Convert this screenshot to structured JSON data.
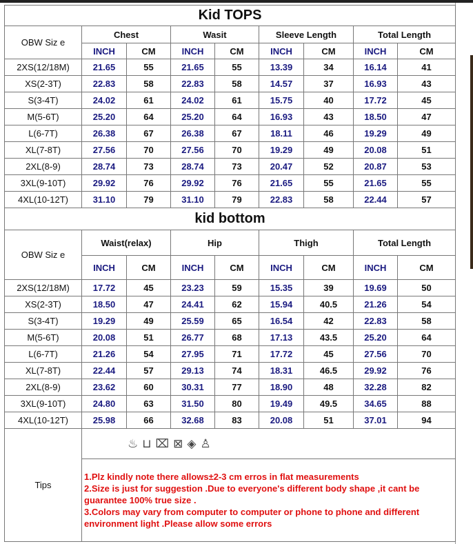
{
  "tops": {
    "title": "Kid TOPS",
    "size_label": "OBW  Siz e",
    "groups": [
      "Chest",
      "Wasit",
      "Sleeve Length",
      "Total Length"
    ],
    "units": [
      "INCH",
      "CM"
    ],
    "rows": [
      [
        "2XS(12/18M)",
        "21.65",
        "55",
        "21.65",
        "55",
        "13.39",
        "34",
        "16.14",
        "41"
      ],
      [
        "XS(2-3T)",
        "22.83",
        "58",
        "22.83",
        "58",
        "14.57",
        "37",
        "16.93",
        "43"
      ],
      [
        "S(3-4T)",
        "24.02",
        "61",
        "24.02",
        "61",
        "15.75",
        "40",
        "17.72",
        "45"
      ],
      [
        "M(5-6T)",
        "25.20",
        "64",
        "25.20",
        "64",
        "16.93",
        "43",
        "18.50",
        "47"
      ],
      [
        "L(6-7T)",
        "26.38",
        "67",
        "26.38",
        "67",
        "18.11",
        "46",
        "19.29",
        "49"
      ],
      [
        "XL(7-8T)",
        "27.56",
        "70",
        "27.56",
        "70",
        "19.29",
        "49",
        "20.08",
        "51"
      ],
      [
        "2XL(8-9)",
        "28.74",
        "73",
        "28.74",
        "73",
        "20.47",
        "52",
        "20.87",
        "53"
      ],
      [
        "3XL(9-10T)",
        "29.92",
        "76",
        "29.92",
        "76",
        "21.65",
        "55",
        "21.65",
        "55"
      ],
      [
        "4XL(10-12T)",
        "31.10",
        "79",
        "31.10",
        "79",
        "22.83",
        "58",
        "22.44",
        "57"
      ]
    ]
  },
  "bottom": {
    "title": "kid bottom",
    "size_label": "OBW  Siz e",
    "groups": [
      "Waist(relax)",
      "Hip",
      "Thigh",
      "Total Length"
    ],
    "units": [
      "INCH",
      "CM"
    ],
    "rows": [
      [
        "2XS(12/18M)",
        "17.72",
        "45",
        "23.23",
        "59",
        "15.35",
        "39",
        "19.69",
        "50"
      ],
      [
        "XS(2-3T)",
        "18.50",
        "47",
        "24.41",
        "62",
        "15.94",
        "40.5",
        "21.26",
        "54"
      ],
      [
        "S(3-4T)",
        "19.29",
        "49",
        "25.59",
        "65",
        "16.54",
        "42",
        "22.83",
        "58"
      ],
      [
        "M(5-6T)",
        "20.08",
        "51",
        "26.77",
        "68",
        "17.13",
        "43.5",
        "25.20",
        "64"
      ],
      [
        "L(6-7T)",
        "21.26",
        "54",
        "27.95",
        "71",
        "17.72",
        "45",
        "27.56",
        "70"
      ],
      [
        "XL(7-8T)",
        "22.44",
        "57",
        "29.13",
        "74",
        "18.31",
        "46.5",
        "29.92",
        "76"
      ],
      [
        "2XL(8-9)",
        "23.62",
        "60",
        "30.31",
        "77",
        "18.90",
        "48",
        "32.28",
        "82"
      ],
      [
        "3XL(9-10T)",
        "24.80",
        "63",
        "31.50",
        "80",
        "19.49",
        "49.5",
        "34.65",
        "88"
      ],
      [
        "4XL(10-12T)",
        "25.98",
        "66",
        "32.68",
        "83",
        "20.08",
        "51",
        "37.01",
        "94"
      ]
    ]
  },
  "tips": {
    "label": "Tips",
    "care_icons": [
      "hand-wash-icon",
      "bleach-icon",
      "no-tumble-dry-icon",
      "dry-icon",
      "iron-icon",
      "shirt-icon"
    ],
    "care_glyphs": [
      "♨",
      "⊔",
      "⌧",
      "⊠",
      "◈",
      "♙"
    ],
    "lines": [
      "1.Plz kindly note there allows±2-3 cm erros in flat  measurements",
      "2.Size is just for suggestion .Due to everyone's different body shape ,it cant be guarantee 100% true size .",
      "3.Colors may  vary from computer to computer or phone to phone and different environment light .Please allow some errors"
    ]
  }
}
